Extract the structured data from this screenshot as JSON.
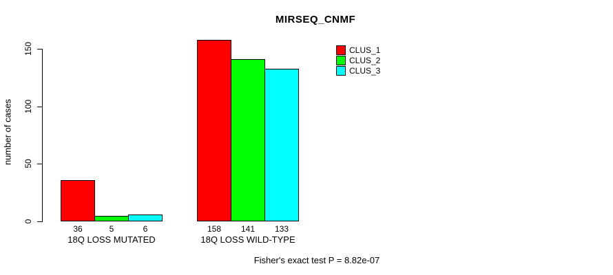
{
  "chart_data": {
    "type": "bar",
    "title": "MIRSEQ_CNMF",
    "ylabel": "number of cases",
    "xlabel": "",
    "yticks": [
      0,
      50,
      100,
      150
    ],
    "ylim": [
      0,
      150
    ],
    "grid": false,
    "legend_position": "top-right",
    "categories": [
      "18Q LOSS MUTATED",
      "18Q LOSS WILD-TYPE"
    ],
    "series": [
      {
        "name": "CLUS_1",
        "color": "#ff0000",
        "values": [
          36,
          158
        ]
      },
      {
        "name": "CLUS_2",
        "color": "#00ff00",
        "values": [
          5,
          141
        ]
      },
      {
        "name": "CLUS_3",
        "color": "#00ffff",
        "values": [
          6,
          133
        ]
      }
    ],
    "annotation": "Fisher's exact test P = 8.82e-07",
    "axis_color": "#000000",
    "background_color": "#ffffff"
  }
}
